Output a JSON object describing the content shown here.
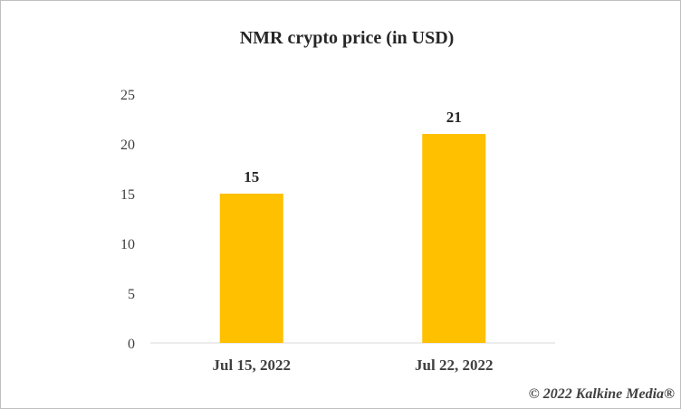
{
  "chart_data": {
    "type": "bar",
    "title": "NMR crypto price (in USD)",
    "categories": [
      "Jul 15, 2022",
      "Jul 22, 2022"
    ],
    "values": [
      15,
      21
    ],
    "data_labels": [
      "15",
      "21"
    ],
    "ylim": [
      0,
      25
    ],
    "yticks": [
      0,
      5,
      10,
      15,
      20,
      25
    ],
    "xlabel": "",
    "ylabel": "",
    "grid": false,
    "bar_color": "#FFC000"
  },
  "copyright": "© 2022 Kalkine Media®"
}
